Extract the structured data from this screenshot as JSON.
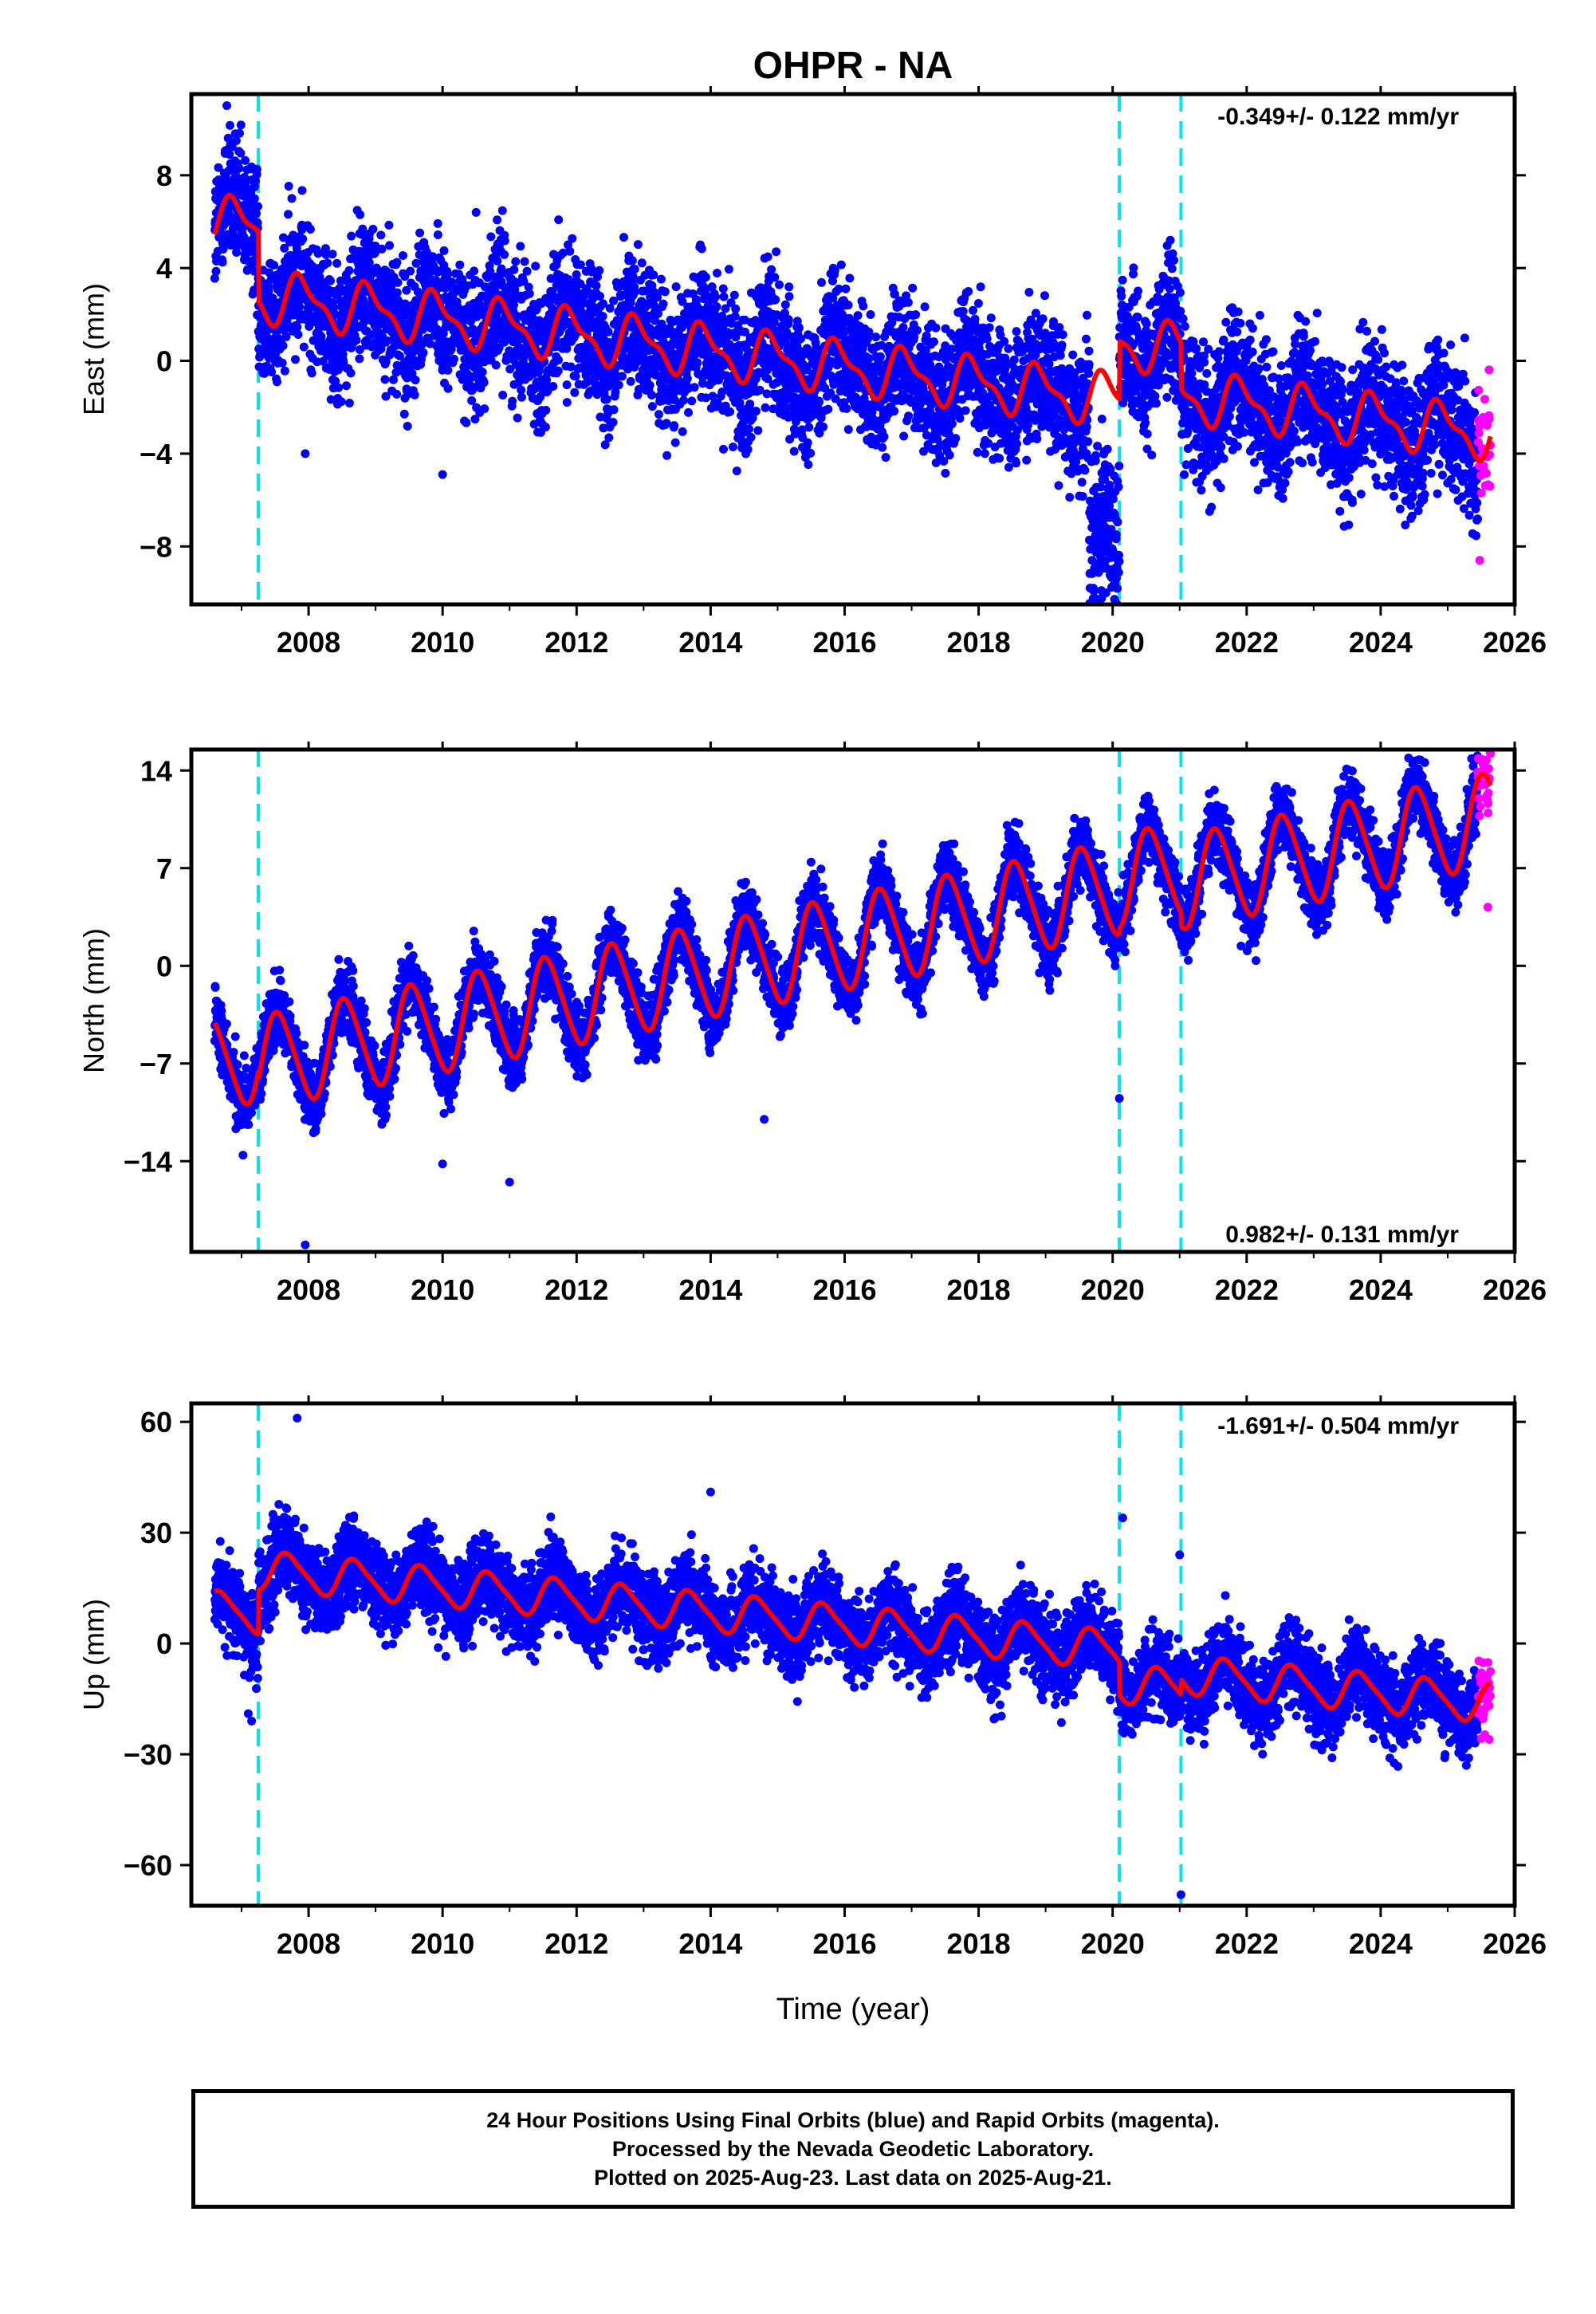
{
  "figure": {
    "title": "OHPR - NA",
    "xlabel": "Time (year)",
    "footer": [
      "24 Hour Positions Using Final Orbits (blue) and Rapid Orbits (magenta).",
      "Processed by the Nevada Geodetic Laboratory.",
      "Plotted on 2025-Aug-23. Last data on 2025-Aug-21."
    ]
  },
  "colors": {
    "final_orbits": "#0000ff",
    "rapid_orbits": "#ff00ff",
    "model": "#ff0000",
    "events": "#00e5ee",
    "axes": "#000000"
  },
  "chart_data": [
    {
      "type": "scatter",
      "ylabel": "East (mm)",
      "rate": "-0.349+/- 0.122 mm/yr",
      "rate_position": "top-right",
      "xlim": [
        2006.25,
        2026.0
      ],
      "ylim": [
        -10.5,
        11.5
      ],
      "xticks": [
        2008,
        2010,
        2012,
        2014,
        2016,
        2018,
        2020,
        2022,
        2024,
        2026
      ],
      "yticks": [
        -8,
        -4,
        0,
        4,
        8
      ],
      "events": [
        2007.25,
        2020.1,
        2021.02
      ],
      "data_range": [
        2006.6,
        2025.64
      ],
      "rapid_range": [
        2025.45,
        2025.64
      ],
      "model": {
        "start_value": 6.0,
        "rate": -0.349,
        "annual_amplitude": 1.0,
        "annual_phase_year": 2006.65,
        "semiannual_amplitude": 0.4,
        "offsets": [
          {
            "year": 2007.25,
            "value": -3.0
          },
          {
            "year": 2020.1,
            "value": 2.5
          },
          {
            "year": 2021.02,
            "value": -2.0
          }
        ],
        "scatter": 1.4
      },
      "anomalies": [
        {
          "from": 2019.65,
          "to": 2020.1,
          "offset": -6.5,
          "scatter": 1.1
        }
      ],
      "outliers": [
        {
          "x": 2006.78,
          "y": 11.0
        },
        {
          "x": 2006.8,
          "y": 9.6
        },
        {
          "x": 2007.2,
          "y": 7.8
        },
        {
          "x": 2007.75,
          "y": 7.0
        },
        {
          "x": 2007.95,
          "y": -4.0
        },
        {
          "x": 2010.0,
          "y": -4.9
        },
        {
          "x": 2010.5,
          "y": 6.4
        },
        {
          "x": 2019.9,
          "y": -10.0
        },
        {
          "x": 2024.45,
          "y": -6.8
        }
      ]
    },
    {
      "type": "scatter",
      "ylabel": "North (mm)",
      "rate": "0.982+/- 0.131 mm/yr",
      "rate_position": "bottom-right",
      "xlim": [
        2006.25,
        2026.0
      ],
      "ylim": [
        -20.5,
        15.5
      ],
      "xticks": [
        2008,
        2010,
        2012,
        2014,
        2016,
        2018,
        2020,
        2022,
        2024,
        2026
      ],
      "yticks": [
        -14,
        -7,
        0,
        7,
        14
      ],
      "events": [
        2007.25,
        2020.1,
        2021.02
      ],
      "data_range": [
        2006.6,
        2025.64
      ],
      "rapid_range": [
        2025.45,
        2025.64
      ],
      "model": {
        "start_value": -7.0,
        "rate": 0.982,
        "annual_amplitude": 3.3,
        "annual_phase_year": 2006.3,
        "semiannual_amplitude": 0.4,
        "offsets": [
          {
            "year": 2007.25,
            "value": -0.6
          },
          {
            "year": 2020.1,
            "value": 0.4
          },
          {
            "year": 2021.02,
            "value": -1.0
          }
        ],
        "scatter": 1.2
      },
      "anomalies": [],
      "outliers": [
        {
          "x": 2007.95,
          "y": -20.0
        },
        {
          "x": 2011.0,
          "y": -15.5
        },
        {
          "x": 2010.0,
          "y": -14.2
        },
        {
          "x": 2014.8,
          "y": -11.0
        },
        {
          "x": 2020.1,
          "y": -9.5
        },
        {
          "x": 2025.64,
          "y": 15.2
        },
        {
          "x": 2025.6,
          "y": 4.2
        }
      ]
    },
    {
      "type": "scatter",
      "ylabel": "Up (mm)",
      "rate": "-1.691+/- 0.504 mm/yr",
      "rate_position": "top-right",
      "xlim": [
        2006.25,
        2026.0
      ],
      "ylim": [
        -71,
        65
      ],
      "xticks": [
        2008,
        2010,
        2012,
        2014,
        2016,
        2018,
        2020,
        2022,
        2024,
        2026
      ],
      "yticks": [
        -60,
        -30,
        0,
        30,
        60
      ],
      "events": [
        2007.25,
        2020.1,
        2021.02
      ],
      "data_range": [
        2006.6,
        2025.64
      ],
      "rapid_range": [
        2025.45,
        2025.64
      ],
      "model": {
        "start_value": 9.0,
        "rate": -1.691,
        "annual_amplitude": 5.0,
        "annual_phase_year": 2006.45,
        "semiannual_amplitude": 1.0,
        "offsets": [
          {
            "year": 2007.25,
            "value": 12.0
          },
          {
            "year": 2020.1,
            "value": -9.0
          },
          {
            "year": 2021.02,
            "value": 4.0
          }
        ],
        "scatter": 5.5
      },
      "anomalies": [],
      "outliers": [
        {
          "x": 2007.83,
          "y": 61.0
        },
        {
          "x": 2014.0,
          "y": 41.0
        },
        {
          "x": 2020.15,
          "y": 34.0
        },
        {
          "x": 2021.0,
          "y": 24.0
        },
        {
          "x": 2021.02,
          "y": -68.0
        },
        {
          "x": 2007.15,
          "y": -21.0
        },
        {
          "x": 2007.1,
          "y": -19.0
        },
        {
          "x": 2025.62,
          "y": -26.0
        }
      ]
    }
  ]
}
